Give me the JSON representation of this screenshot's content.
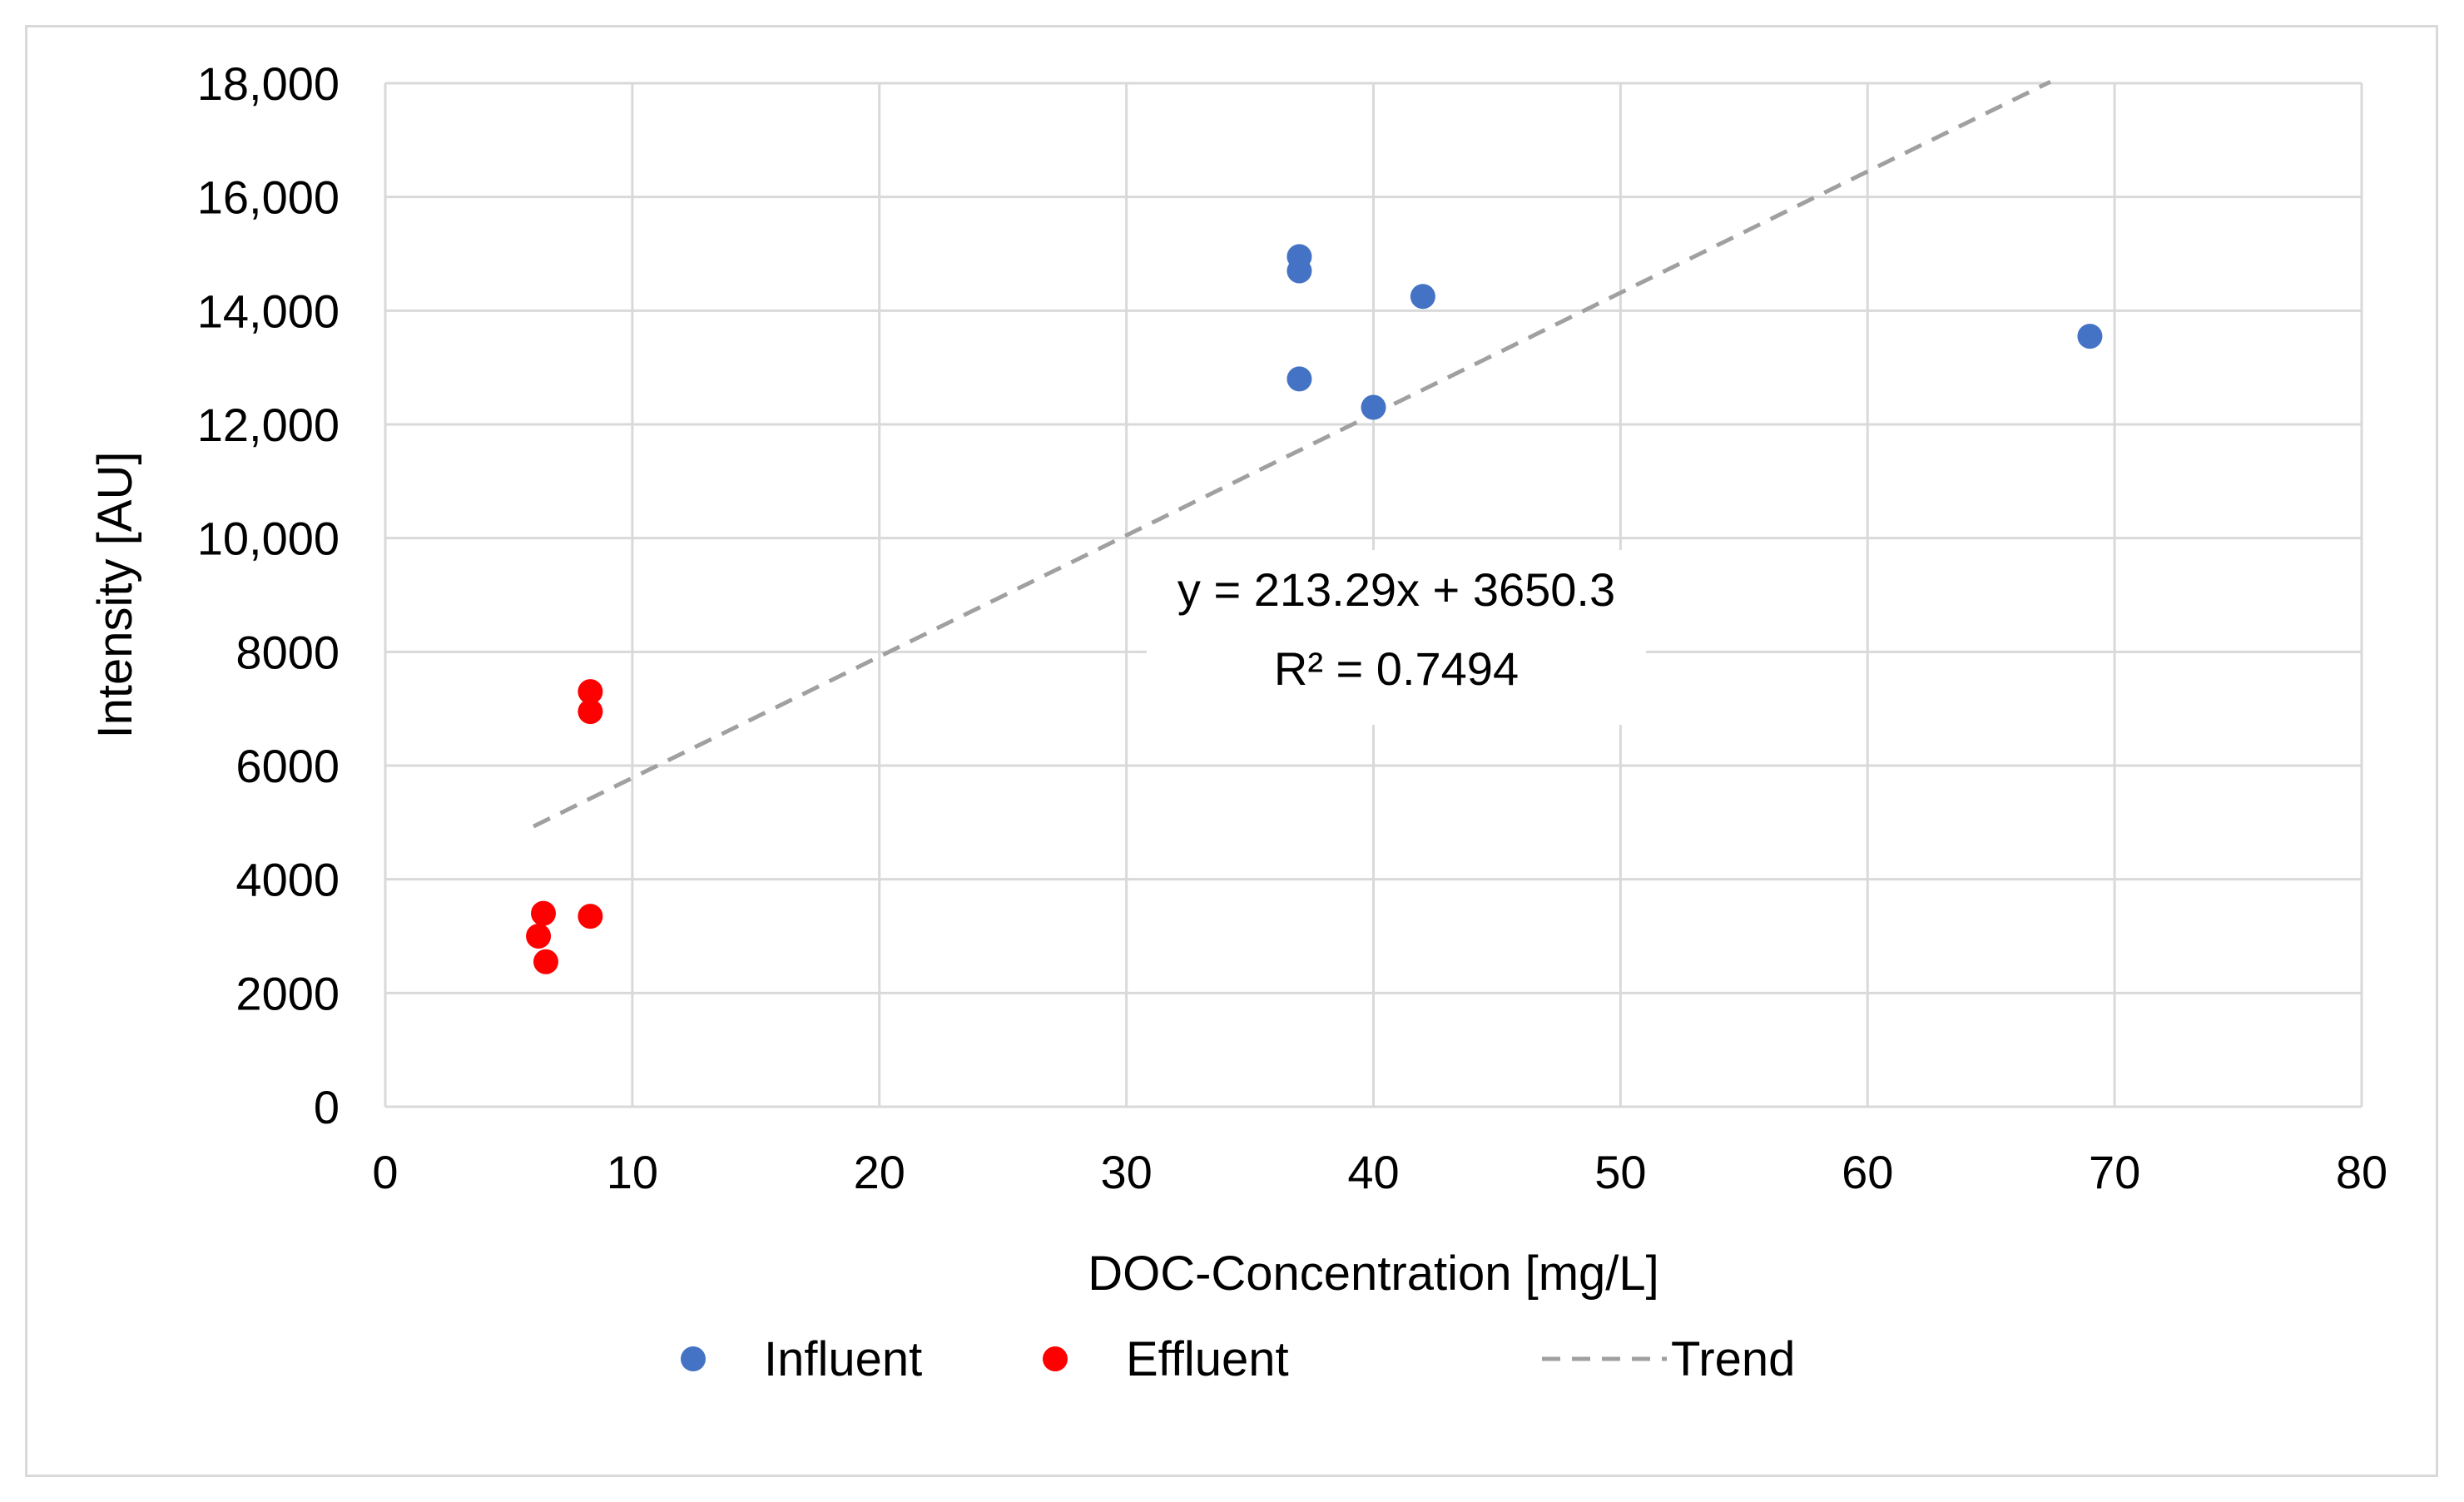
{
  "chart_data": {
    "type": "scatter",
    "title": "",
    "xlabel": "DOC-Concentration [mg/L]",
    "ylabel": "Intensity [AU]",
    "xlim": [
      0,
      80
    ],
    "ylim": [
      0,
      18000
    ],
    "x_ticks": [
      0,
      10,
      20,
      30,
      40,
      50,
      60,
      70,
      80
    ],
    "x_tick_labels": [
      "0",
      "10",
      "20",
      "30",
      "40",
      "50",
      "60",
      "70",
      "80"
    ],
    "y_ticks": [
      0,
      2000,
      4000,
      6000,
      8000,
      10000,
      12000,
      14000,
      16000,
      18000
    ],
    "y_tick_labels": [
      "0",
      "2000",
      "4000",
      "6000",
      "8000",
      "10,000",
      "12,000",
      "14,000",
      "16,000",
      "18,000"
    ],
    "grid": true,
    "legend_position": "bottom",
    "series": [
      {
        "name": "Influent",
        "color": "#4472c4",
        "points": [
          {
            "x": 37,
            "y": 14950
          },
          {
            "x": 37,
            "y": 14700
          },
          {
            "x": 37,
            "y": 12800
          },
          {
            "x": 40,
            "y": 12300
          },
          {
            "x": 42,
            "y": 14250
          },
          {
            "x": 69,
            "y": 13550
          }
        ]
      },
      {
        "name": "Effluent",
        "color": "#ff0000",
        "points": [
          {
            "x": 8.3,
            "y": 7300
          },
          {
            "x": 8.3,
            "y": 6950
          },
          {
            "x": 6.4,
            "y": 3400
          },
          {
            "x": 8.3,
            "y": 3350
          },
          {
            "x": 6.2,
            "y": 3000
          },
          {
            "x": 6.5,
            "y": 2550
          }
        ]
      }
    ],
    "trendline": {
      "name": "Trend",
      "color": "#a0a0a0",
      "style": "dashed",
      "slope": 213.29,
      "intercept": 3650.3,
      "x_start": 6,
      "x_end": 67.4,
      "equation_line1": "y = 213.29x + 3650.3",
      "equation_line2": "R² = 0.7494"
    }
  }
}
